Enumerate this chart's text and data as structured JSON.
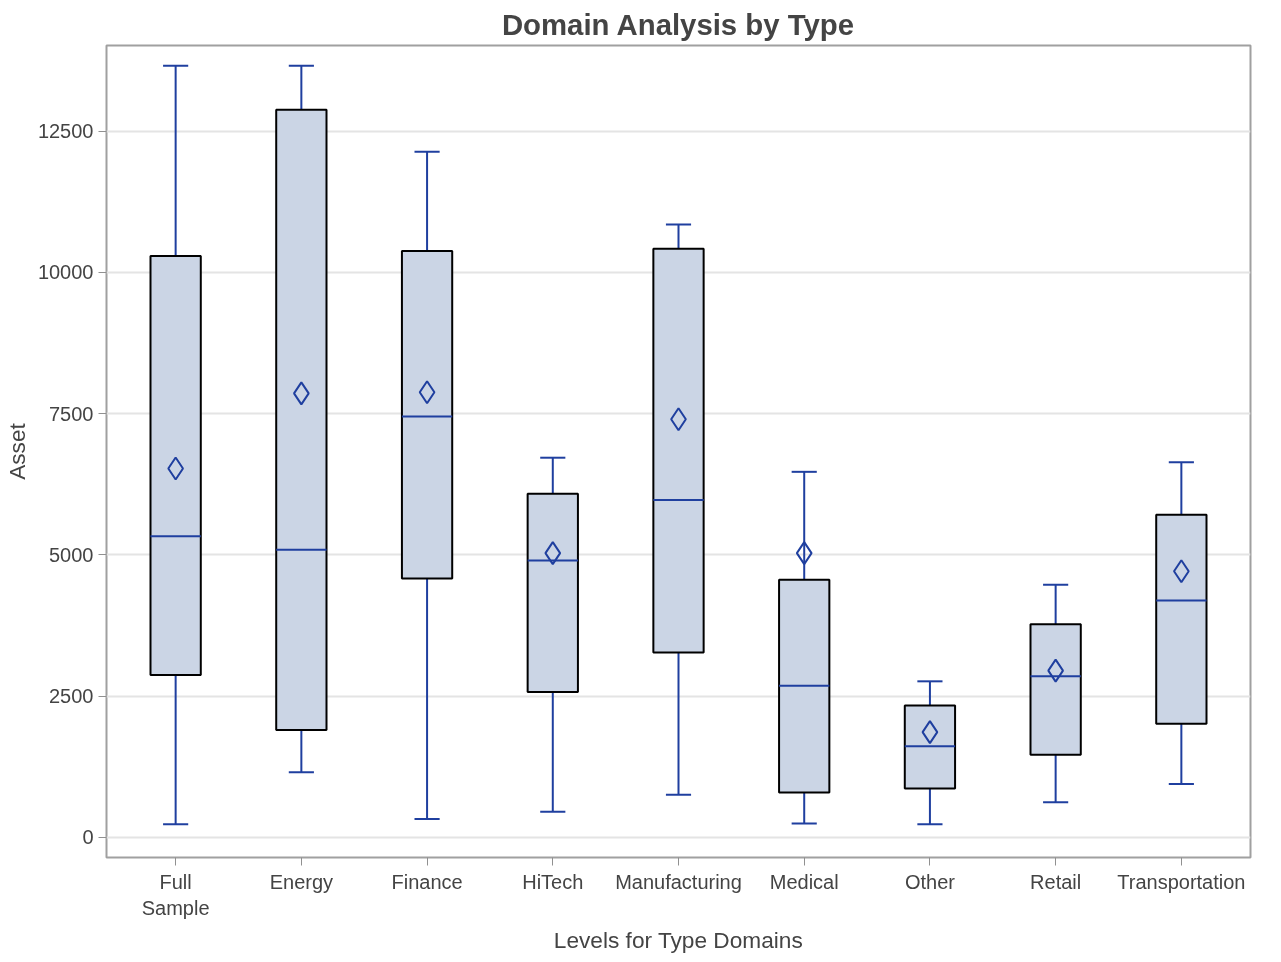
{
  "chart_data": {
    "type": "box",
    "title": "Domain Analysis by Type",
    "xlabel": "Levels for Type Domains",
    "ylabel": "Asset",
    "categories": [
      "Full\nSample",
      "Energy",
      "Finance",
      "HiTech",
      "Manufacturing",
      "Medical",
      "Other",
      "Retail",
      "Transportation"
    ],
    "color": "#cbd5e5",
    "boxes": [
      {
        "low": 230,
        "q1": 2870,
        "median": 5330,
        "q3": 10290,
        "high": 13660,
        "mean": 6530
      },
      {
        "low": 1150,
        "q1": 1900,
        "median": 5090,
        "q3": 12880,
        "high": 13660,
        "mean": 7860
      },
      {
        "low": 320,
        "q1": 4580,
        "median": 7450,
        "q3": 10380,
        "high": 12140,
        "mean": 7880
      },
      {
        "low": 450,
        "q1": 2570,
        "median": 4900,
        "q3": 6080,
        "high": 6720,
        "mean": 5030
      },
      {
        "low": 750,
        "q1": 3270,
        "median": 5970,
        "q3": 10420,
        "high": 10850,
        "mean": 7400
      },
      {
        "low": 240,
        "q1": 790,
        "median": 2680,
        "q3": 4560,
        "high": 6470,
        "mean": 5030
      },
      {
        "low": 230,
        "q1": 860,
        "median": 1610,
        "q3": 2330,
        "high": 2760,
        "mean": 1860
      },
      {
        "low": 620,
        "q1": 1460,
        "median": 2850,
        "q3": 3770,
        "high": 4470,
        "mean": 2950
      },
      {
        "low": 940,
        "q1": 2010,
        "median": 4190,
        "q3": 5710,
        "high": 6640,
        "mean": 4710
      }
    ],
    "ylim": [
      -360,
      14020
    ],
    "yticks": [
      0,
      2500,
      5000,
      7500,
      10000,
      12500
    ],
    "grid": "y"
  }
}
